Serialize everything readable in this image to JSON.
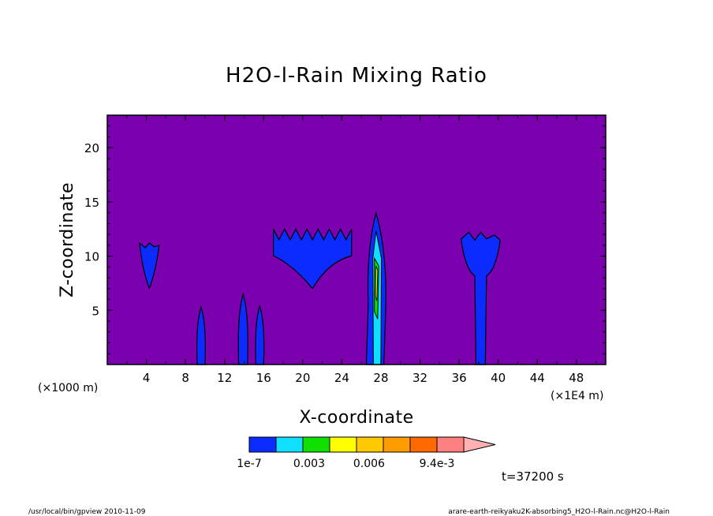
{
  "colors": {
    "background": "#7b00b0",
    "levels": [
      "#0b2bff",
      "#10e0ff",
      "#10e000",
      "#ffff00",
      "#ffc800",
      "#ff9c00",
      "#ff6a00",
      "#ff1010",
      "#ff8080",
      "#ffb0b0"
    ],
    "outline": "#000000"
  },
  "chart_data": {
    "type": "heatmap",
    "title": "H2O-l-Rain Mixing Ratio",
    "xlabel": "X-coordinate",
    "ylabel": "Z-coordinate",
    "x_unit_left": "(×1000 m)",
    "x_unit_right": "(×1E4 m)",
    "xlim": [
      0,
      51
    ],
    "ylim": [
      0,
      23
    ],
    "x_ticks": [
      4,
      8,
      12,
      16,
      20,
      24,
      28,
      32,
      36,
      40,
      44,
      48
    ],
    "y_ticks": [
      5,
      10,
      15,
      20
    ],
    "x_tick_labels": [
      "4",
      "8",
      "12",
      "16",
      "20",
      "24",
      "28",
      "32",
      "36",
      "40",
      "44",
      "48"
    ],
    "y_tick_labels": [
      "5",
      "10",
      "15",
      "20"
    ],
    "colorbar": {
      "labels": [
        "1e-7",
        "0.003",
        "0.006",
        "9.4e-3"
      ],
      "label_positions": [
        1e-07,
        0.003,
        0.006,
        0.0094
      ]
    },
    "clouds": [
      {
        "name": "cloud-x4",
        "x_center": 4.3,
        "z_base": 7.0,
        "z_top": 11.2,
        "half_width": 1.0
      },
      {
        "name": "shaft-x9.5",
        "x_center": 9.6,
        "z_base": 0.0,
        "z_top": 5.3,
        "half_width": 0.4
      },
      {
        "name": "shaft-x14",
        "x_center": 13.9,
        "z_base": 0.0,
        "z_top": 6.5,
        "half_width": 0.45
      },
      {
        "name": "shaft-x15.6",
        "x_center": 15.6,
        "z_base": 0.0,
        "z_top": 5.4,
        "half_width": 0.4
      },
      {
        "name": "anvil-x21",
        "x_center": 21.0,
        "z_base": 7.0,
        "z_top": 12.5,
        "half_width": 4.0
      },
      {
        "name": "core-x27.5",
        "x_center": 27.5,
        "z_base": 0.0,
        "z_top": 14.0,
        "half_width": 1.0
      },
      {
        "name": "cloud-x38",
        "x_center": 38.2,
        "z_base": 0.0,
        "z_top": 12.2,
        "half_width": 2.0
      }
    ]
  },
  "footer": {
    "time": "t=37200 s",
    "left": "/usr/local/bin/gpview  2010-11-09",
    "right": "arare-earth-reikyaku2K-absorbing5_H2O-l-Rain.nc@H2O-l-Rain"
  }
}
